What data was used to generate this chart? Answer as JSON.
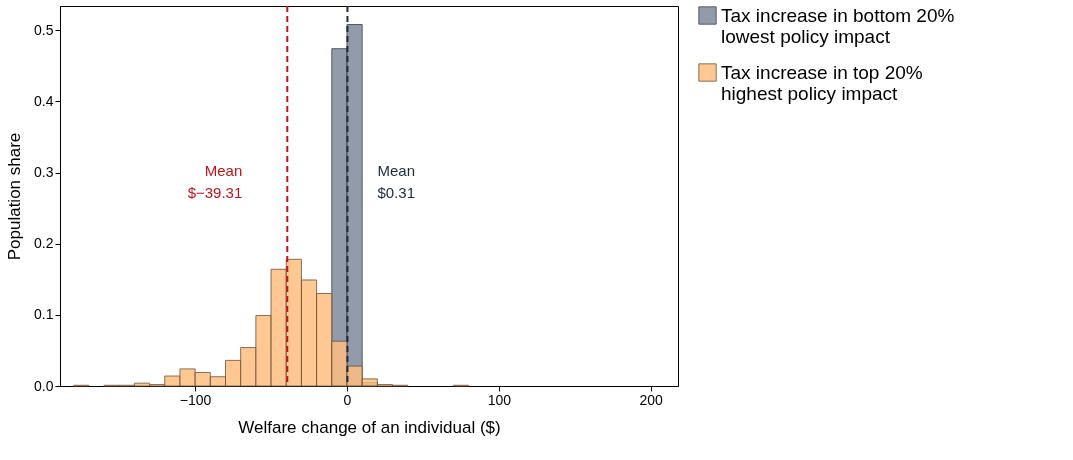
{
  "chart_data": {
    "type": "histogram",
    "xlabel": "Welfare change of an individual ($)",
    "ylabel": "Population share",
    "bins": [
      -180,
      -170,
      -160,
      -150,
      -140,
      -130,
      -120,
      -110,
      -100,
      -90,
      -80,
      -70,
      -60,
      -50,
      -40,
      -30,
      -20,
      -10,
      0,
      10,
      20,
      30,
      40,
      50,
      60,
      70,
      80
    ],
    "series": [
      {
        "name": "Tax increase in bottom 20%\nlowest policy impact",
        "color": "#7e8a9b",
        "values": [
          null,
          null,
          null,
          null,
          null,
          null,
          null,
          null,
          null,
          null,
          null,
          null,
          null,
          null,
          null,
          null,
          null,
          0.474,
          0.508,
          0.005,
          null,
          null,
          null,
          null,
          null,
          null
        ]
      },
      {
        "name": "Tax increase in top 20%\nhighest policy impact",
        "color": "#ffbf80",
        "values": [
          0.001,
          null,
          0.001,
          0.001,
          0.004,
          0.002,
          0.014,
          0.024,
          0.019,
          0.013,
          0.036,
          0.054,
          0.099,
          0.164,
          0.178,
          0.149,
          0.13,
          0.063,
          0.028,
          0.01,
          0.002,
          0.001,
          null,
          null,
          null,
          0.001
        ]
      }
    ],
    "xlim": [
      -189,
      218
    ],
    "xticks": [
      -100,
      0,
      100,
      200
    ],
    "ylim": [
      0,
      0.534
    ],
    "yticks": [
      {
        "value": 0,
        "label": "0.0"
      },
      0.1,
      0.2,
      0.3,
      0.4,
      0.5
    ],
    "ref_lines": [
      {
        "axis": "x",
        "value": -39.31,
        "label": "Mean\n$−39.31",
        "color": "#c0141c",
        "line_style": "dashed"
      },
      {
        "axis": "x",
        "value": 0.31,
        "label": "Mean\n$0.31",
        "color": "#1e2a3e",
        "line_style": "dashed"
      }
    ],
    "grid": false,
    "legend": "right"
  }
}
